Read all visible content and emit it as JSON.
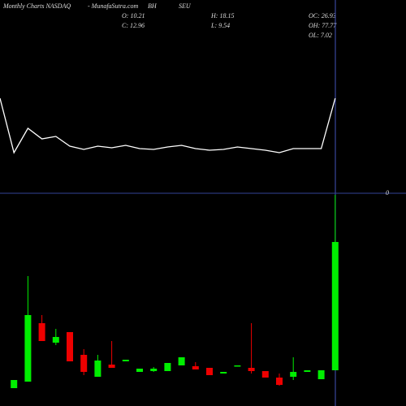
{
  "header": {
    "source": "Monthly Charts NASDAQ",
    "site": "- MunafaSutra.com",
    "symbol_a": "BH",
    "symbol_b": "SEU",
    "open": "O: 10.21",
    "high": "H: 18.15",
    "oc": "OC: 26.93",
    "close": "C: 12.96",
    "low": "L: 9.54",
    "oh": "OH: 77.77",
    "ol": "OL: 7.02"
  },
  "chart_data": [
    {
      "type": "line",
      "color": "#ffffff",
      "ylim": [
        0,
        238
      ],
      "yticks": [
        0
      ],
      "values": [
        117,
        50,
        80,
        67,
        70,
        58,
        54,
        58,
        56,
        59,
        55,
        54,
        57,
        59,
        55,
        53,
        54,
        57,
        55,
        53,
        50,
        55,
        55,
        55,
        117
      ]
    },
    {
      "type": "candlestick",
      "up_color": "#00ee00",
      "down_color": "#ee0000",
      "ylim": [
        0,
        100
      ],
      "open": [
        1,
        5,
        41,
        29,
        35.5,
        21.5,
        8,
        15.5,
        17.5,
        11,
        11.5,
        11.5,
        15,
        14.5,
        13.5,
        10,
        14.5,
        13.5,
        11.5,
        7.5,
        8,
        11,
        6.5,
        12
      ],
      "high": [
        6,
        70,
        46,
        37.5,
        35.5,
        25,
        21.5,
        30,
        18.5,
        13,
        14,
        16.5,
        20,
        17,
        13.5,
        11,
        15,
        41,
        11.5,
        10,
        20,
        12,
        12,
        120
      ],
      "low": [
        1,
        5,
        30,
        27.5,
        17.5,
        9,
        8,
        13.5,
        17.5,
        11,
        11,
        11.5,
        15,
        12.5,
        9,
        10,
        14.5,
        10,
        7.5,
        2.5,
        6,
        11,
        6.5,
        12
      ],
      "close": [
        6,
        46,
        30,
        32.5,
        17.5,
        11,
        18,
        13.5,
        18.5,
        13,
        13,
        16.5,
        20,
        12.5,
        9,
        11,
        15,
        11.5,
        7.5,
        3,
        11,
        12,
        12,
        91
      ]
    }
  ]
}
